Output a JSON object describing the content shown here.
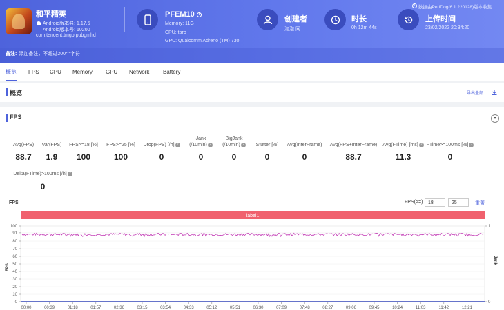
{
  "app": {
    "name": "和平精英",
    "android_version": "Android版本名: 1.17.5",
    "android_code": "Android版本号: 10200",
    "package": "com.tencent.tmgp.pubgmhd"
  },
  "device": {
    "name": "PFEM10",
    "memory": "Memory: 11G",
    "cpu": "CPU: taro",
    "gpu": "GPU: Qualcomm Adreno (TM) 730"
  },
  "creator": {
    "label": "创建者",
    "value": "泡泡 网"
  },
  "duration": {
    "label": "时长",
    "value": "0h 12m 44s"
  },
  "upload": {
    "label": "上传时间",
    "value": "23/02/2022 20:34:20"
  },
  "source_note": "数据由PerfDog(6.1.220128)版本收集",
  "note": {
    "label": "备注:",
    "placeholder": "添加备注，不超过200个字符"
  },
  "tabs": [
    "概览",
    "FPS",
    "CPU",
    "Memory",
    "GPU",
    "Network",
    "Battery"
  ],
  "overview": {
    "title": "概览",
    "export": "导出全部"
  },
  "fps_section": {
    "title": "FPS",
    "metrics": [
      {
        "label": "Avg(FPS)",
        "value": "88.7"
      },
      {
        "label": "Var(FPS)",
        "value": "1.9"
      },
      {
        "label": "FPS>=18 [%]",
        "value": "100"
      },
      {
        "label": "FPS>=25 [%]",
        "value": "100"
      },
      {
        "label": "Drop(FPS) [/h]",
        "value": "0"
      },
      {
        "label": "Jank",
        "label2": "(/10min)",
        "value": "0"
      },
      {
        "label": "BigJank",
        "label2": "(/10min)",
        "value": "0"
      },
      {
        "label": "Stutter [%]",
        "value": "0"
      },
      {
        "label": "Avg(InterFrame)",
        "value": "0"
      },
      {
        "label": "Avg(FPS+InterFrame)",
        "value": "88.7"
      },
      {
        "label": "Avg(FTime) [ms]",
        "value": "11.3"
      },
      {
        "label": "FTime>=100ms [%]",
        "value": "0"
      },
      {
        "label": "Delta(FTime)>100ms [/h]",
        "value": "0"
      }
    ]
  },
  "chart_controls": {
    "label": "FPS(>=)",
    "threshold1": "18",
    "threshold2": "25",
    "reset": "重置"
  },
  "chart_data": {
    "type": "line",
    "title": "FPS",
    "label_bar": "label1",
    "ylabel": "FPS",
    "y2label": "Jank",
    "ylim": [
      0,
      100
    ],
    "y2lim": [
      0,
      1
    ],
    "yticks": [
      0,
      10,
      20,
      30,
      40,
      50,
      60,
      70,
      80,
      91,
      100
    ],
    "y2ticks": [
      0,
      1
    ],
    "xticks": [
      "00:00",
      "00:39",
      "01:18",
      "01:57",
      "02:36",
      "03:15",
      "03:54",
      "04:33",
      "05:12",
      "05:51",
      "06:30",
      "07:09",
      "07:48",
      "08:27",
      "09:06",
      "09:45",
      "10:24",
      "11:03",
      "11:42",
      "12:21"
    ],
    "xlim_seconds": [
      0,
      764
    ],
    "series": [
      {
        "name": "FPS",
        "color": "#c23bb5",
        "mean": 89,
        "min": 86,
        "max": 92
      },
      {
        "name": "Jank",
        "color": "#3a4cbe",
        "values_all": 0
      }
    ]
  }
}
